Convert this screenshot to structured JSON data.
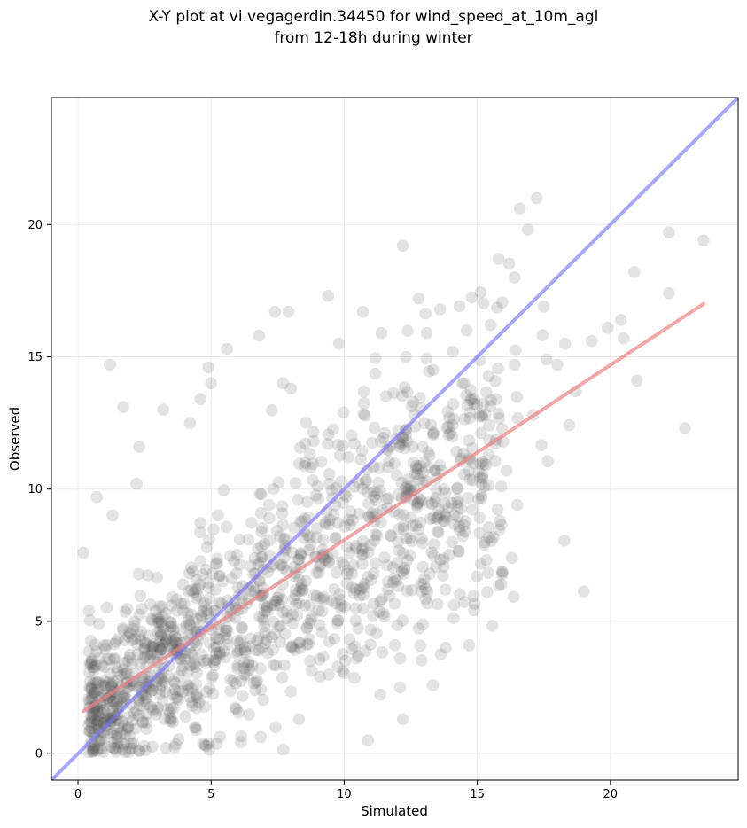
{
  "chart_data": {
    "type": "scatter",
    "title_lines": [
      "X-Y plot at vi.vegagerdin.34450 for wind_speed_at_10m_agl",
      "from 12-18h during winter"
    ],
    "xlabel": "Simulated",
    "ylabel": "Observed",
    "xlim": [
      -1.0,
      24.8
    ],
    "ylim": [
      -1.0,
      24.8
    ],
    "xticks": [
      0,
      5,
      10,
      15,
      20
    ],
    "yticks": [
      0,
      5,
      10,
      15,
      20
    ],
    "grid": true,
    "point_color": "#505050",
    "point_alpha": 0.16,
    "n_generated_points": 1300,
    "identity_line": {
      "color": "#7777ff",
      "x": [
        -1.0,
        24.8
      ],
      "y": [
        -1.0,
        24.8
      ]
    },
    "fit_line": {
      "color": "#f08080",
      "x": [
        0.2,
        23.5
      ],
      "y": [
        1.6,
        17.0
      ]
    },
    "highlighted_points": [
      {
        "x": 16.6,
        "y": 20.6
      },
      {
        "x": 16.9,
        "y": 19.8
      },
      {
        "x": 12.2,
        "y": 19.2
      },
      {
        "x": 22.2,
        "y": 19.7
      },
      {
        "x": 23.5,
        "y": 19.4
      },
      {
        "x": 15.8,
        "y": 18.7
      },
      {
        "x": 20.9,
        "y": 18.2
      },
      {
        "x": 16.4,
        "y": 18.0
      },
      {
        "x": 9.4,
        "y": 17.3
      },
      {
        "x": 12.8,
        "y": 17.2
      },
      {
        "x": 22.2,
        "y": 17.4
      },
      {
        "x": 7.4,
        "y": 16.7
      },
      {
        "x": 7.9,
        "y": 16.7
      },
      {
        "x": 10.7,
        "y": 16.7
      },
      {
        "x": 13.6,
        "y": 16.8
      },
      {
        "x": 17.5,
        "y": 16.9
      },
      {
        "x": 20.4,
        "y": 16.4
      },
      {
        "x": 19.9,
        "y": 16.1
      },
      {
        "x": 15.5,
        "y": 16.2
      },
      {
        "x": 14.6,
        "y": 16.0
      },
      {
        "x": 6.8,
        "y": 15.8
      },
      {
        "x": 11.4,
        "y": 15.9
      },
      {
        "x": 13.1,
        "y": 15.9
      },
      {
        "x": 5.6,
        "y": 15.3
      },
      {
        "x": 9.8,
        "y": 15.5
      },
      {
        "x": 18.3,
        "y": 15.5
      },
      {
        "x": 19.3,
        "y": 15.6
      },
      {
        "x": 20.5,
        "y": 15.7
      },
      {
        "x": 1.2,
        "y": 14.7
      },
      {
        "x": 4.9,
        "y": 14.6
      },
      {
        "x": 18.0,
        "y": 14.7
      },
      {
        "x": 21.0,
        "y": 14.1
      },
      {
        "x": 7.7,
        "y": 14.0
      },
      {
        "x": 8.0,
        "y": 13.8
      },
      {
        "x": 16.4,
        "y": 14.7
      },
      {
        "x": 17.6,
        "y": 14.9
      },
      {
        "x": 1.7,
        "y": 13.1
      },
      {
        "x": 3.2,
        "y": 13.0
      },
      {
        "x": 4.6,
        "y": 13.4
      },
      {
        "x": 5.0,
        "y": 14.0
      },
      {
        "x": 18.7,
        "y": 13.7
      },
      {
        "x": 22.8,
        "y": 12.3
      },
      {
        "x": 17.1,
        "y": 12.8
      },
      {
        "x": 0.2,
        "y": 7.6
      },
      {
        "x": 0.7,
        "y": 9.7
      },
      {
        "x": 1.3,
        "y": 9.0
      },
      {
        "x": 2.2,
        "y": 10.2
      },
      {
        "x": 2.3,
        "y": 11.6
      },
      {
        "x": 4.2,
        "y": 12.5
      },
      {
        "x": 10.9,
        "y": 0.5
      },
      {
        "x": 12.2,
        "y": 1.3
      },
      {
        "x": 12.1,
        "y": 2.5
      },
      {
        "x": 14.7,
        "y": 4.1
      },
      {
        "x": 15.9,
        "y": 6.4
      },
      {
        "x": 16.3,
        "y": 7.4
      },
      {
        "x": 16.5,
        "y": 9.4
      },
      {
        "x": 15.9,
        "y": 10.1
      },
      {
        "x": 16.1,
        "y": 10.7
      },
      {
        "x": 11.9,
        "y": 4.1
      },
      {
        "x": 8.3,
        "y": 1.3
      }
    ]
  }
}
